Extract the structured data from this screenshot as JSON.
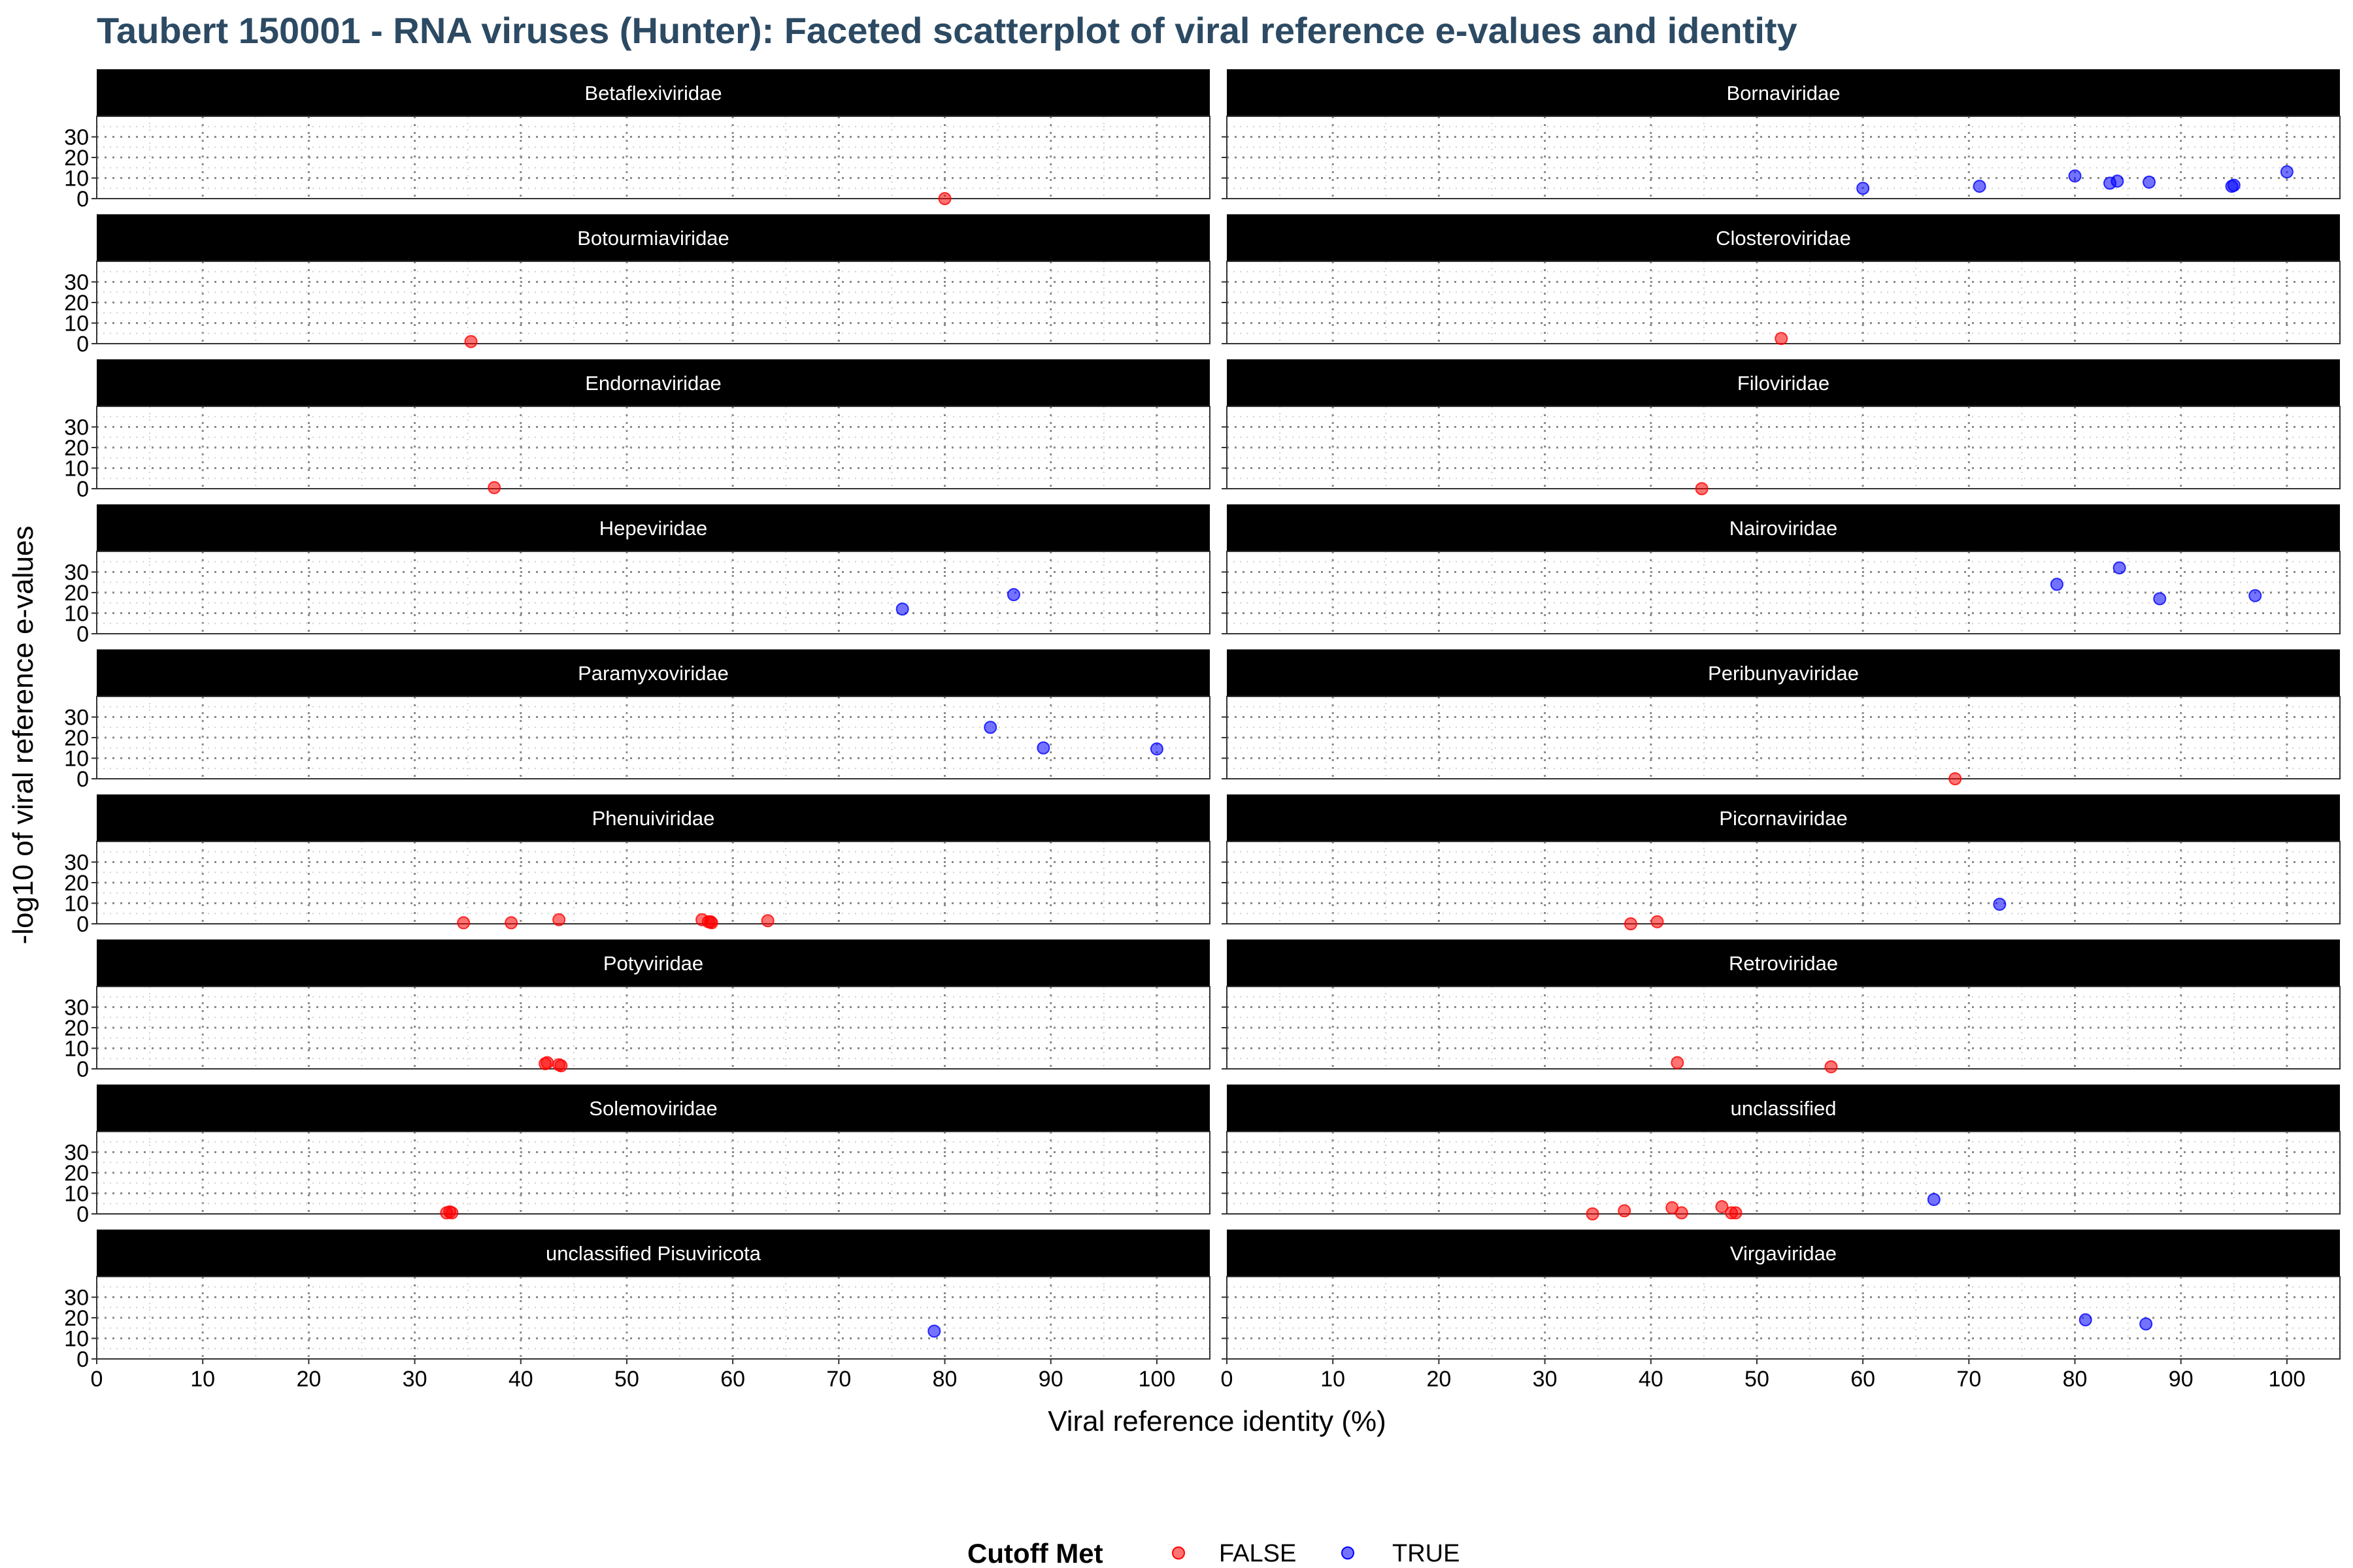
{
  "chart_data": {
    "type": "scatter",
    "title": "Taubert 150001 - RNA viruses (Hunter): Faceted scatterplot of viral reference e-values and identity",
    "xlabel": "Viral reference identity (%)",
    "ylabel": "-log10 of viral reference e-values",
    "xlim": [
      0,
      105
    ],
    "ylim": [
      0,
      40
    ],
    "x_ticks": [
      "0",
      "10",
      "20",
      "30",
      "40",
      "50",
      "60",
      "70",
      "80",
      "90",
      "100"
    ],
    "y_ticks": [
      "0",
      "10",
      "20",
      "30"
    ],
    "grid": true,
    "legend": {
      "title": "Cutoff Met",
      "placement": "bottom",
      "entries": [
        {
          "label": "FALSE",
          "color": "#ff0000"
        },
        {
          "label": "TRUE",
          "color": "#0000ff"
        }
      ]
    },
    "facets": [
      {
        "name": "Betaflexiviridae",
        "points": [
          {
            "x": 80,
            "y": 0,
            "cutoff": false
          }
        ]
      },
      {
        "name": "Bornaviridae",
        "points": [
          {
            "x": 60,
            "y": 5,
            "cutoff": true
          },
          {
            "x": 71,
            "y": 6,
            "cutoff": true
          },
          {
            "x": 80,
            "y": 11,
            "cutoff": true
          },
          {
            "x": 83.3,
            "y": 7.5,
            "cutoff": true
          },
          {
            "x": 84,
            "y": 8.5,
            "cutoff": true
          },
          {
            "x": 87,
            "y": 8,
            "cutoff": true
          },
          {
            "x": 94.8,
            "y": 6,
            "cutoff": true
          },
          {
            "x": 95,
            "y": 6.5,
            "cutoff": true
          },
          {
            "x": 100,
            "y": 13,
            "cutoff": true
          }
        ]
      },
      {
        "name": "Botourmiaviridae",
        "points": [
          {
            "x": 35.3,
            "y": 1,
            "cutoff": false
          }
        ]
      },
      {
        "name": "Closteroviridae",
        "points": [
          {
            "x": 52.3,
            "y": 2.5,
            "cutoff": false
          }
        ]
      },
      {
        "name": "Endornaviridae",
        "points": [
          {
            "x": 37.5,
            "y": 0.5,
            "cutoff": false
          }
        ]
      },
      {
        "name": "Filoviridae",
        "points": [
          {
            "x": 44.8,
            "y": 0,
            "cutoff": false
          }
        ]
      },
      {
        "name": "Hepeviridae",
        "points": [
          {
            "x": 76,
            "y": 12,
            "cutoff": true
          },
          {
            "x": 86.5,
            "y": 19,
            "cutoff": true
          }
        ]
      },
      {
        "name": "Nairoviridae",
        "points": [
          {
            "x": 78.3,
            "y": 24,
            "cutoff": true
          },
          {
            "x": 84.2,
            "y": 32,
            "cutoff": true
          },
          {
            "x": 88,
            "y": 17,
            "cutoff": true
          },
          {
            "x": 97,
            "y": 18.5,
            "cutoff": true
          }
        ]
      },
      {
        "name": "Paramyxoviridae",
        "points": [
          {
            "x": 84.3,
            "y": 25,
            "cutoff": true
          },
          {
            "x": 89.3,
            "y": 15,
            "cutoff": true
          },
          {
            "x": 100,
            "y": 14.5,
            "cutoff": true
          }
        ]
      },
      {
        "name": "Peribunyaviridae",
        "points": [
          {
            "x": 68.7,
            "y": 0,
            "cutoff": false
          }
        ]
      },
      {
        "name": "Phenuiviridae",
        "points": [
          {
            "x": 34.6,
            "y": 0.5,
            "cutoff": false
          },
          {
            "x": 39.1,
            "y": 0.5,
            "cutoff": false
          },
          {
            "x": 43.6,
            "y": 2,
            "cutoff": false
          },
          {
            "x": 57.1,
            "y": 2,
            "cutoff": false
          },
          {
            "x": 57.7,
            "y": 1,
            "cutoff": false
          },
          {
            "x": 57.9,
            "y": 1,
            "cutoff": false
          },
          {
            "x": 58,
            "y": 0.5,
            "cutoff": false
          },
          {
            "x": 63.3,
            "y": 1.5,
            "cutoff": false
          }
        ]
      },
      {
        "name": "Picornaviridae",
        "points": [
          {
            "x": 38.1,
            "y": 0,
            "cutoff": false
          },
          {
            "x": 40.6,
            "y": 1,
            "cutoff": false
          },
          {
            "x": 72.9,
            "y": 9.5,
            "cutoff": true
          }
        ]
      },
      {
        "name": "Potyviridae",
        "points": [
          {
            "x": 42.3,
            "y": 2.5,
            "cutoff": false
          },
          {
            "x": 42.5,
            "y": 3,
            "cutoff": false
          },
          {
            "x": 43.6,
            "y": 2,
            "cutoff": false
          },
          {
            "x": 43.8,
            "y": 1.5,
            "cutoff": false
          }
        ]
      },
      {
        "name": "Retroviridae",
        "points": [
          {
            "x": 42.5,
            "y": 3,
            "cutoff": false
          },
          {
            "x": 57,
            "y": 1,
            "cutoff": false
          }
        ]
      },
      {
        "name": "Solemoviridae",
        "points": [
          {
            "x": 33,
            "y": 0.5,
            "cutoff": false
          },
          {
            "x": 33.3,
            "y": 1,
            "cutoff": false
          },
          {
            "x": 33.5,
            "y": 0.5,
            "cutoff": false
          }
        ]
      },
      {
        "name": "unclassified",
        "points": [
          {
            "x": 34.5,
            "y": 0,
            "cutoff": false
          },
          {
            "x": 37.5,
            "y": 1.5,
            "cutoff": false
          },
          {
            "x": 42,
            "y": 3,
            "cutoff": false
          },
          {
            "x": 42.9,
            "y": 0.5,
            "cutoff": false
          },
          {
            "x": 46.7,
            "y": 3.5,
            "cutoff": false
          },
          {
            "x": 47.6,
            "y": 0.5,
            "cutoff": false
          },
          {
            "x": 48,
            "y": 0.5,
            "cutoff": false
          },
          {
            "x": 66.7,
            "y": 7,
            "cutoff": true
          }
        ]
      },
      {
        "name": "unclassified Pisuviricota",
        "points": [
          {
            "x": 79,
            "y": 13.5,
            "cutoff": true
          }
        ]
      },
      {
        "name": "Virgaviridae",
        "points": [
          {
            "x": 81,
            "y": 19,
            "cutoff": true
          },
          {
            "x": 86.7,
            "y": 17,
            "cutoff": true
          }
        ]
      }
    ]
  }
}
